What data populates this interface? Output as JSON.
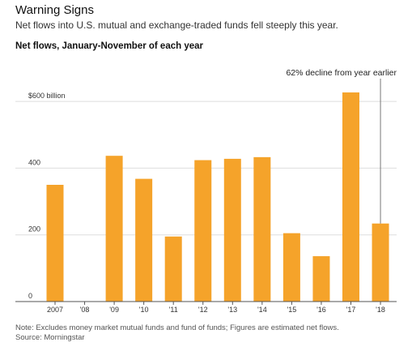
{
  "header": {
    "title": "Warning Signs",
    "subtitle": "Net flows into U.S. mutual and exchange-traded funds fell steeply this year.",
    "chart_heading": "Net flows, January-November of each year"
  },
  "footer": {
    "note": "Note: Excludes money market mutual funds and fund of funds; Figures are estimated net flows.",
    "source": "Source: Morningstar"
  },
  "chart_data": {
    "type": "bar",
    "categories": [
      "2007",
      "'08",
      "'09",
      "'10",
      "'11",
      "'12",
      "'13",
      "'14",
      "'15",
      "'16",
      "'17",
      "'18"
    ],
    "values": [
      350,
      0,
      437,
      368,
      195,
      424,
      428,
      433,
      205,
      136,
      627,
      234
    ],
    "ylim": [
      0,
      700
    ],
    "yticks": [
      0,
      200,
      400,
      600
    ],
    "ytick_labels": [
      "0",
      "200",
      "400",
      "$600 billion"
    ],
    "grid": true,
    "bar_color": "#F5A32A",
    "annotation": {
      "text": "62% decline from year earlier",
      "category": "'18"
    }
  }
}
